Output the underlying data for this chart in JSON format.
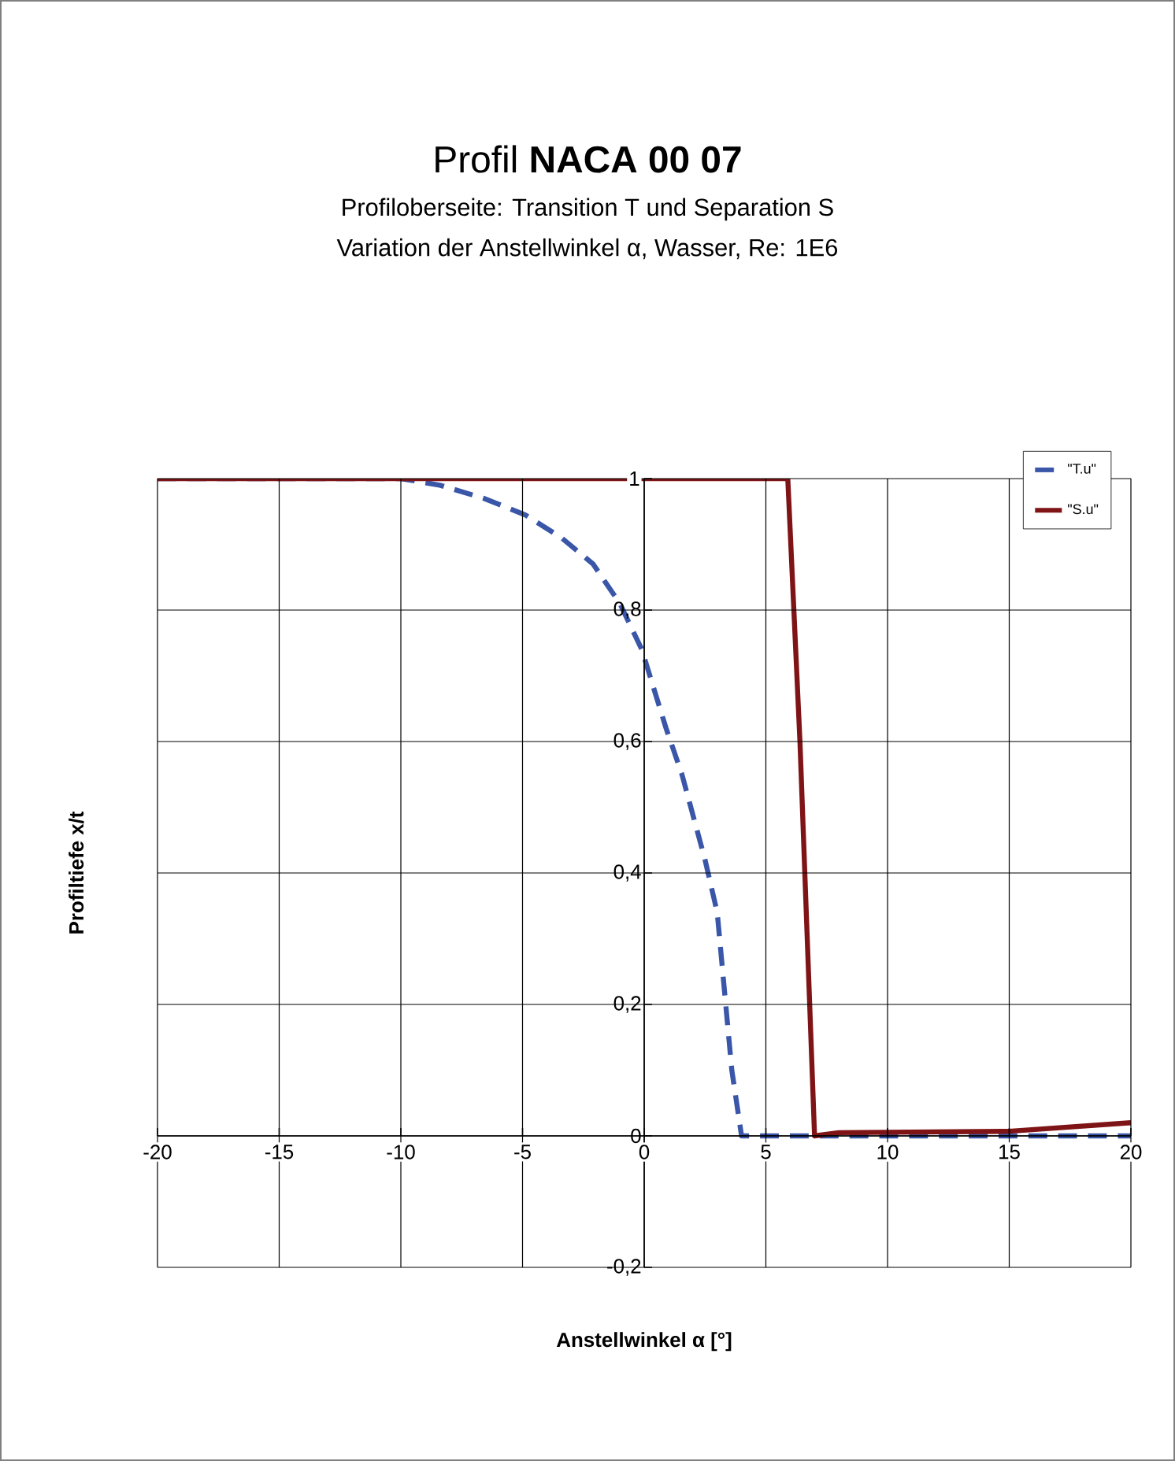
{
  "chart_data": {
    "type": "line",
    "title": "Profil **NACA 00 07**",
    "subtitle": "Profiloberseite: Transition T und Separation S",
    "annotations": [
      "Variation der Anstellwinkel α, Wasser, Re: 1E6"
    ],
    "xlabel": "Anstellwinkel α [°]",
    "ylabel": "Profiltiefe x/t",
    "xlim": [
      -20,
      20
    ],
    "ylim": [
      -0.2,
      1
    ],
    "xticks": [
      -20,
      -15,
      -10,
      -5,
      0,
      5,
      10,
      15,
      20
    ],
    "yticks": [
      {
        "value": -0.2,
        "label": "-0,2"
      },
      0,
      {
        "value": 0.2,
        "label": "0,2"
      },
      {
        "value": 0.4,
        "label": "0,4"
      },
      {
        "value": 0.6,
        "label": "0,6"
      },
      {
        "value": 0.8,
        "label": "0,8"
      },
      1
    ],
    "grid": true,
    "legend": "top right",
    "marker": "none",
    "series": [
      {
        "name": "\"T.u\"",
        "color": "#3a56a8",
        "line_style": "dashed",
        "x": [
          -20,
          -10,
          -8.4,
          -6.6,
          -4.9,
          -3.4,
          -2.1,
          -1.0,
          -0.1,
          0.9,
          1.55,
          2.5,
          3.0,
          3.3,
          3.6,
          4.0,
          5,
          10,
          15,
          20
        ],
        "values": [
          1,
          1,
          0.99,
          0.97,
          0.945,
          0.91,
          0.87,
          0.81,
          0.74,
          0.62,
          0.55,
          0.42,
          0.34,
          0.22,
          0.1,
          0,
          0,
          0,
          0,
          0
        ]
      },
      {
        "name": "\"S.u\"",
        "color": "#7f1416",
        "line_style": "solid",
        "x": [
          -20,
          5.9,
          6.4,
          7.0,
          8,
          15,
          20
        ],
        "values": [
          1,
          1,
          0.6,
          0,
          0.005,
          0.007,
          0.02
        ]
      }
    ]
  }
}
